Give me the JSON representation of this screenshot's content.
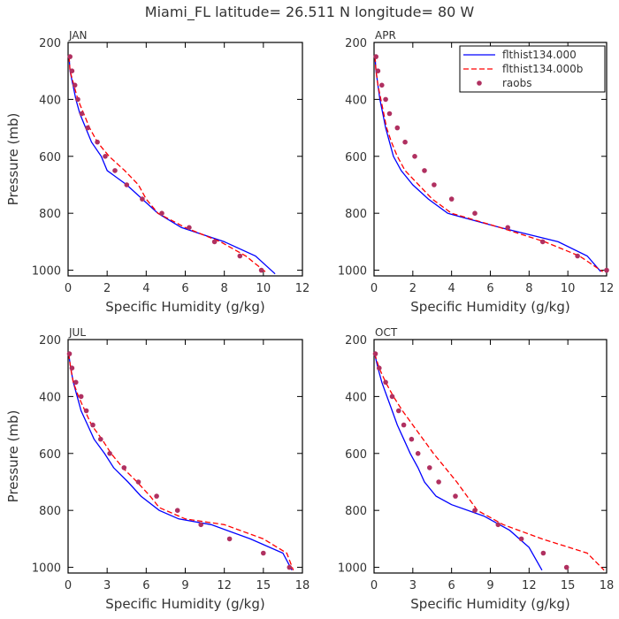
{
  "suptitle": "Miami_FL   latitude= 26.511 N longitude= 80 W",
  "legend": {
    "placement": "top-right of upper-right panel",
    "entries": [
      {
        "label": "flthist134.000",
        "style": "solid",
        "color": "#0000ff"
      },
      {
        "label": "flthist134.000b",
        "style": "dashed",
        "color": "#ff0000"
      },
      {
        "label": "raobs",
        "style": "dots",
        "color": "#b03060"
      }
    ]
  },
  "chart_data": [
    {
      "type": "line",
      "panel": "JAN",
      "title": "JAN",
      "xlabel": "Specific Humidity (g/kg)",
      "ylabel": "Pressure (mb)",
      "xlim": [
        0,
        12
      ],
      "ylim": [
        200,
        1020
      ],
      "y_reversed": true,
      "xticks": [
        0,
        2,
        4,
        6,
        8,
        10,
        12
      ],
      "yticks": [
        200,
        400,
        600,
        800,
        1000
      ],
      "series": [
        {
          "name": "flthist134.000",
          "points": [
            [
              0.05,
              250
            ],
            [
              0.1,
              300
            ],
            [
              0.25,
              350
            ],
            [
              0.4,
              400
            ],
            [
              0.6,
              450
            ],
            [
              0.9,
              500
            ],
            [
              1.2,
              550
            ],
            [
              1.7,
              600
            ],
            [
              2.0,
              650
            ],
            [
              3.0,
              700
            ],
            [
              3.8,
              750
            ],
            [
              4.6,
              800
            ],
            [
              5.8,
              850
            ],
            [
              8.0,
              900
            ],
            [
              9.6,
              950
            ],
            [
              10.6,
              1013
            ]
          ]
        },
        {
          "name": "flthist134.000b",
          "points": [
            [
              0.05,
              250
            ],
            [
              0.1,
              300
            ],
            [
              0.3,
              350
            ],
            [
              0.5,
              400
            ],
            [
              0.8,
              450
            ],
            [
              1.1,
              500
            ],
            [
              1.5,
              550
            ],
            [
              2.1,
              600
            ],
            [
              2.9,
              650
            ],
            [
              3.6,
              700
            ],
            [
              4.0,
              750
            ],
            [
              4.6,
              800
            ],
            [
              6.0,
              850
            ],
            [
              7.8,
              900
            ],
            [
              9.1,
              950
            ],
            [
              10.1,
              1005
            ]
          ]
        }
      ],
      "observations": {
        "name": "raobs",
        "points": [
          [
            0.1,
            250
          ],
          [
            0.2,
            300
          ],
          [
            0.35,
            350
          ],
          [
            0.5,
            400
          ],
          [
            0.7,
            450
          ],
          [
            1.0,
            500
          ],
          [
            1.5,
            550
          ],
          [
            1.9,
            600
          ],
          [
            2.4,
            650
          ],
          [
            3.0,
            700
          ],
          [
            3.8,
            750
          ],
          [
            4.8,
            800
          ],
          [
            6.2,
            850
          ],
          [
            7.5,
            900
          ],
          [
            8.8,
            950
          ],
          [
            9.9,
            1000
          ]
        ]
      }
    },
    {
      "type": "line",
      "panel": "APR",
      "title": "APR",
      "xlabel": "Specific Humidity (g/kg)",
      "ylabel": "",
      "xlim": [
        0,
        12
      ],
      "ylim": [
        200,
        1020
      ],
      "y_reversed": true,
      "xticks": [
        0,
        2,
        4,
        6,
        8,
        10,
        12
      ],
      "yticks": [
        200,
        400,
        600,
        800,
        1000
      ],
      "series": [
        {
          "name": "flthist134.000",
          "points": [
            [
              0.05,
              250
            ],
            [
              0.1,
              300
            ],
            [
              0.2,
              350
            ],
            [
              0.3,
              400
            ],
            [
              0.45,
              450
            ],
            [
              0.6,
              500
            ],
            [
              0.8,
              550
            ],
            [
              1.0,
              600
            ],
            [
              1.4,
              650
            ],
            [
              2.0,
              700
            ],
            [
              2.8,
              750
            ],
            [
              3.8,
              800
            ],
            [
              6.5,
              850
            ],
            [
              9.5,
              900
            ],
            [
              11.0,
              950
            ],
            [
              11.7,
              1005
            ]
          ]
        },
        {
          "name": "flthist134.000b",
          "points": [
            [
              0.05,
              250
            ],
            [
              0.1,
              300
            ],
            [
              0.2,
              350
            ],
            [
              0.35,
              400
            ],
            [
              0.5,
              450
            ],
            [
              0.65,
              500
            ],
            [
              0.9,
              550
            ],
            [
              1.2,
              600
            ],
            [
              1.6,
              650
            ],
            [
              2.3,
              700
            ],
            [
              3.0,
              750
            ],
            [
              4.0,
              800
            ],
            [
              6.5,
              850
            ],
            [
              8.8,
              900
            ],
            [
              10.6,
              950
            ],
            [
              11.8,
              1005
            ]
          ]
        }
      ],
      "observations": {
        "name": "raobs",
        "points": [
          [
            0.1,
            250
          ],
          [
            0.2,
            300
          ],
          [
            0.4,
            350
          ],
          [
            0.6,
            400
          ],
          [
            0.8,
            450
          ],
          [
            1.2,
            500
          ],
          [
            1.6,
            550
          ],
          [
            2.1,
            600
          ],
          [
            2.6,
            650
          ],
          [
            3.1,
            700
          ],
          [
            4.0,
            750
          ],
          [
            5.2,
            800
          ],
          [
            6.9,
            850
          ],
          [
            8.7,
            900
          ],
          [
            10.5,
            950
          ],
          [
            12.0,
            1000
          ]
        ]
      }
    },
    {
      "type": "line",
      "panel": "JUL",
      "title": "JUL",
      "xlabel": "Specific Humidity (g/kg)",
      "ylabel": "Pressure (mb)",
      "xlim": [
        0,
        18
      ],
      "ylim": [
        200,
        1020
      ],
      "y_reversed": true,
      "xticks": [
        0,
        3,
        6,
        9,
        12,
        15,
        18
      ],
      "yticks": [
        200,
        400,
        600,
        800,
        1000
      ],
      "series": [
        {
          "name": "flthist134.000",
          "points": [
            [
              0.05,
              250
            ],
            [
              0.2,
              300
            ],
            [
              0.4,
              350
            ],
            [
              0.7,
              400
            ],
            [
              1.0,
              450
            ],
            [
              1.5,
              500
            ],
            [
              2.0,
              550
            ],
            [
              2.8,
              600
            ],
            [
              3.5,
              650
            ],
            [
              4.6,
              700
            ],
            [
              5.6,
              750
            ],
            [
              7.0,
              800
            ],
            [
              8.5,
              830
            ],
            [
              11.0,
              850
            ],
            [
              14.0,
              900
            ],
            [
              16.5,
              950
            ],
            [
              17.2,
              1010
            ]
          ]
        },
        {
          "name": "flthist134.000b",
          "points": [
            [
              0.05,
              250
            ],
            [
              0.2,
              300
            ],
            [
              0.4,
              350
            ],
            [
              0.8,
              400
            ],
            [
              1.3,
              450
            ],
            [
              1.8,
              500
            ],
            [
              2.6,
              550
            ],
            [
              3.3,
              600
            ],
            [
              4.2,
              650
            ],
            [
              5.3,
              700
            ],
            [
              6.3,
              750
            ],
            [
              7.0,
              790
            ],
            [
              9.0,
              830
            ],
            [
              12.0,
              850
            ],
            [
              15.0,
              900
            ],
            [
              16.8,
              950
            ],
            [
              17.3,
              1010
            ]
          ]
        }
      ],
      "observations": {
        "name": "raobs",
        "points": [
          [
            0.1,
            250
          ],
          [
            0.3,
            300
          ],
          [
            0.6,
            350
          ],
          [
            1.0,
            400
          ],
          [
            1.4,
            450
          ],
          [
            1.9,
            500
          ],
          [
            2.5,
            550
          ],
          [
            3.2,
            600
          ],
          [
            4.3,
            650
          ],
          [
            5.4,
            700
          ],
          [
            6.8,
            750
          ],
          [
            8.4,
            800
          ],
          [
            10.2,
            850
          ],
          [
            12.4,
            900
          ],
          [
            15.0,
            950
          ],
          [
            17.0,
            1000
          ]
        ]
      }
    },
    {
      "type": "line",
      "panel": "OCT",
      "title": "OCT",
      "xlabel": "Specific Humidity (g/kg)",
      "ylabel": "",
      "xlim": [
        0,
        18
      ],
      "ylim": [
        200,
        1020
      ],
      "y_reversed": true,
      "xticks": [
        0,
        3,
        6,
        9,
        12,
        15,
        18
      ],
      "yticks": [
        200,
        400,
        600,
        800,
        1000
      ],
      "series": [
        {
          "name": "flthist134.000",
          "points": [
            [
              0.05,
              250
            ],
            [
              0.3,
              300
            ],
            [
              0.6,
              350
            ],
            [
              1.0,
              400
            ],
            [
              1.4,
              450
            ],
            [
              1.8,
              500
            ],
            [
              2.3,
              550
            ],
            [
              2.8,
              600
            ],
            [
              3.4,
              650
            ],
            [
              3.9,
              700
            ],
            [
              4.8,
              750
            ],
            [
              6.0,
              780
            ],
            [
              8.5,
              820
            ],
            [
              10.5,
              870
            ],
            [
              12.0,
              930
            ],
            [
              13.0,
              1010
            ]
          ]
        },
        {
          "name": "flthist134.000b",
          "points": [
            [
              0.05,
              250
            ],
            [
              0.4,
              300
            ],
            [
              0.9,
              350
            ],
            [
              1.5,
              400
            ],
            [
              2.2,
              450
            ],
            [
              3.0,
              500
            ],
            [
              3.8,
              550
            ],
            [
              4.6,
              600
            ],
            [
              5.5,
              650
            ],
            [
              6.4,
              700
            ],
            [
              7.2,
              750
            ],
            [
              8.0,
              800
            ],
            [
              10.0,
              850
            ],
            [
              13.0,
              900
            ],
            [
              16.5,
              950
            ],
            [
              17.8,
              1010
            ]
          ]
        }
      ],
      "observations": {
        "name": "raobs",
        "points": [
          [
            0.1,
            250
          ],
          [
            0.4,
            300
          ],
          [
            0.9,
            350
          ],
          [
            1.4,
            400
          ],
          [
            1.9,
            450
          ],
          [
            2.3,
            500
          ],
          [
            2.9,
            550
          ],
          [
            3.4,
            600
          ],
          [
            4.3,
            650
          ],
          [
            5.0,
            700
          ],
          [
            6.3,
            750
          ],
          [
            7.8,
            800
          ],
          [
            9.6,
            850
          ],
          [
            11.4,
            900
          ],
          [
            13.1,
            950
          ],
          [
            14.9,
            1000
          ]
        ]
      }
    }
  ]
}
